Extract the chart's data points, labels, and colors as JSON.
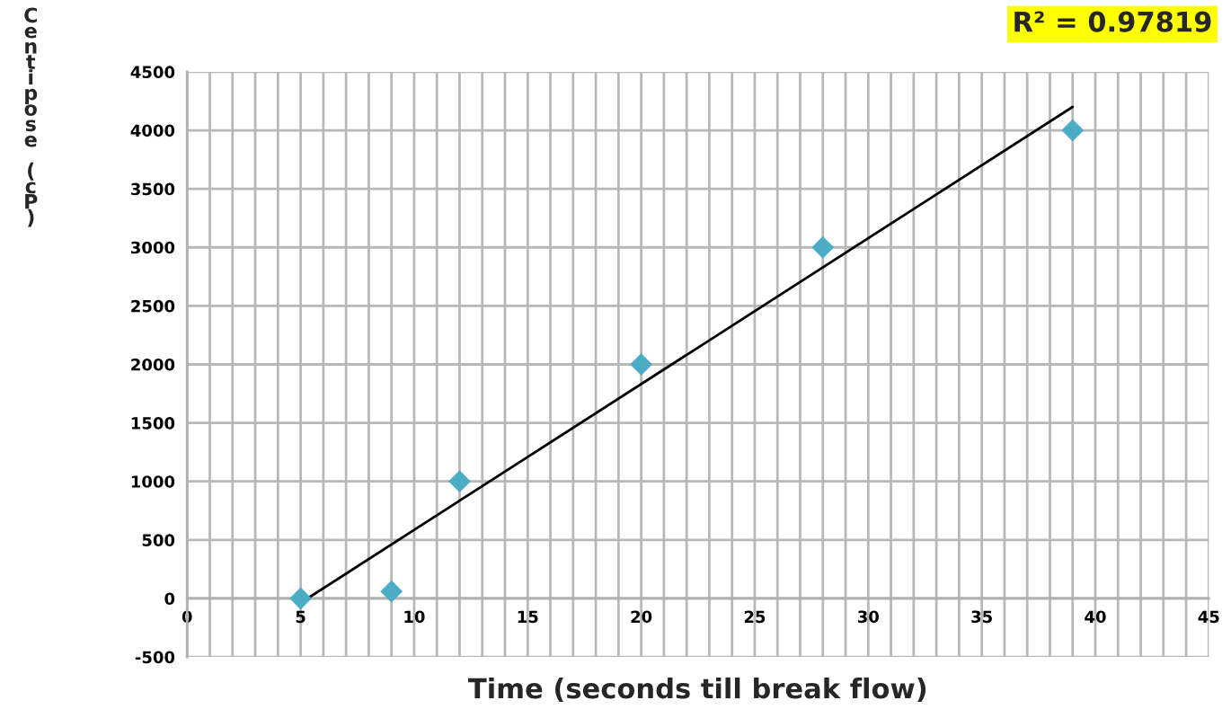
{
  "chart_data": {
    "type": "scatter",
    "xlabel": "Time (seconds till break flow)",
    "ylabel": "Centipose (cP)",
    "annotations": [
      "R² = 0.97819"
    ],
    "xlim": [
      0,
      45
    ],
    "ylim": [
      -500,
      4500
    ],
    "xticks": [
      0,
      {
        "value": 1,
        "label": null
      },
      {
        "value": 2,
        "label": null
      },
      {
        "value": 3,
        "label": null
      },
      {
        "value": 4,
        "label": null
      },
      5,
      {
        "value": 6,
        "label": null
      },
      {
        "value": 7,
        "label": null
      },
      {
        "value": 8,
        "label": null
      },
      {
        "value": 9,
        "label": null
      },
      10,
      {
        "value": 11,
        "label": null
      },
      {
        "value": 12,
        "label": null
      },
      {
        "value": 13,
        "label": null
      },
      {
        "value": 14,
        "label": null
      },
      15,
      {
        "value": 16,
        "label": null
      },
      {
        "value": 17,
        "label": null
      },
      {
        "value": 18,
        "label": null
      },
      {
        "value": 19,
        "label": null
      },
      20,
      {
        "value": 21,
        "label": null
      },
      {
        "value": 22,
        "label": null
      },
      {
        "value": 23,
        "label": null
      },
      {
        "value": 24,
        "label": null
      },
      25,
      {
        "value": 26,
        "label": null
      },
      {
        "value": 27,
        "label": null
      },
      {
        "value": 28,
        "label": null
      },
      {
        "value": 29,
        "label": null
      },
      30,
      {
        "value": 31,
        "label": null
      },
      {
        "value": 32,
        "label": null
      },
      {
        "value": 33,
        "label": null
      },
      {
        "value": 34,
        "label": null
      },
      35,
      {
        "value": 36,
        "label": null
      },
      {
        "value": 37,
        "label": null
      },
      {
        "value": 38,
        "label": null
      },
      {
        "value": 39,
        "label": null
      },
      40,
      {
        "value": 41,
        "label": null
      },
      {
        "value": 42,
        "label": null
      },
      {
        "value": 43,
        "label": null
      },
      {
        "value": 44,
        "label": null
      },
      45
    ],
    "yticks": [
      -500,
      0,
      500,
      1000,
      1500,
      2000,
      2500,
      3000,
      3500,
      4000,
      4500
    ],
    "grid": true,
    "series": [
      {
        "marker": "diamond",
        "color": "#4bacc6",
        "x": [
          5,
          9,
          12,
          20,
          28,
          39
        ],
        "values": [
          0,
          60,
          1000,
          2000,
          3000,
          4000
        ]
      },
      {
        "type": "line",
        "color": "#000000",
        "x": [
          5.3,
          39
        ],
        "values": [
          0,
          4200
        ]
      }
    ]
  }
}
